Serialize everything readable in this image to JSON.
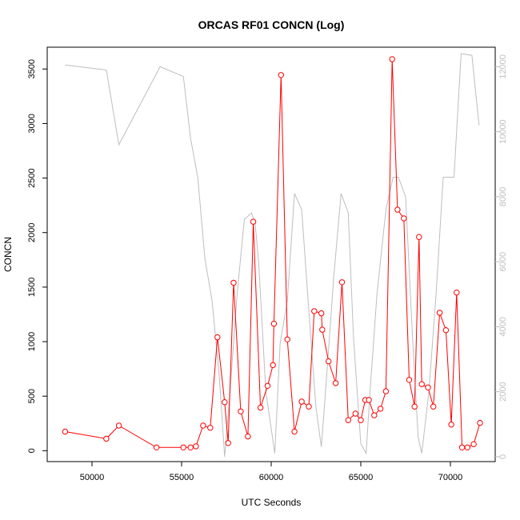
{
  "chart_data": {
    "type": "line",
    "title": "ORCAS RF01 CONCN (Log)",
    "xlabel": "UTC Seconds",
    "ylabel": "CONCN",
    "xlim": [
      47500,
      72500
    ],
    "ylim": [
      -100,
      3700
    ],
    "y2lim": [
      -150,
      12600
    ],
    "x_ticks": [
      "50000",
      "55000",
      "60000",
      "65000",
      "70000"
    ],
    "y_ticks": [
      "0",
      "500",
      "1000",
      "1500",
      "2000",
      "2500",
      "3000",
      "3500"
    ],
    "y2_ticks": [
      "0",
      "2000",
      "4000",
      "6000",
      "8000",
      "10000",
      "12000"
    ],
    "colors": {
      "primary": "#ff0000",
      "secondary": "#bebebe",
      "frame": "#000000"
    },
    "series": [
      {
        "axis": "left",
        "marker": "open-circle",
        "x": [
          48500,
          50800,
          51500,
          53600,
          55100,
          55500,
          55800,
          56200,
          56600,
          57000,
          57400,
          57600,
          57900,
          58300,
          58700,
          59000,
          59400,
          59800,
          60100,
          60150,
          60550,
          60900,
          61300,
          61700,
          62100,
          62400,
          62800,
          62850,
          63200,
          63600,
          63950,
          64300,
          64700,
          65000,
          65250,
          65450,
          65750,
          66100,
          66400,
          66750,
          67050,
          67400,
          67700,
          68000,
          68250,
          68400,
          68750,
          69050,
          69400,
          69750,
          70050,
          70350,
          70650,
          70950,
          71300,
          71650
        ],
        "y": [
          175,
          110,
          230,
          30,
          30,
          30,
          40,
          230,
          210,
          1040,
          445,
          70,
          1540,
          360,
          130,
          2100,
          395,
          595,
          785,
          1165,
          3445,
          1020,
          175,
          450,
          405,
          1280,
          1260,
          1110,
          820,
          620,
          1545,
          280,
          340,
          280,
          465,
          465,
          325,
          385,
          545,
          3590,
          2210,
          2130,
          650,
          405,
          1960,
          610,
          580,
          405,
          1265,
          1105,
          240,
          1450,
          30,
          30,
          60,
          255
        ]
      },
      {
        "axis": "right",
        "x": [
          48500,
          50800,
          51500,
          53800,
          55100,
          55500,
          55900,
          56300,
          56700,
          57100,
          57400,
          57700,
          58100,
          58500,
          58900,
          59100,
          59300,
          59700,
          60200,
          60500,
          60900,
          61300,
          61700,
          62100,
          62500,
          62800,
          63100,
          63500,
          63900,
          64300,
          64600,
          65000,
          65300,
          65500,
          65900,
          66400,
          66800,
          67100,
          67500,
          67900,
          68200,
          68400,
          68800,
          69200,
          69600,
          69900,
          70200,
          70600,
          71200,
          71600
        ],
        "y": [
          12050,
          11900,
          9600,
          12000,
          11700,
          9800,
          8600,
          6100,
          4800,
          2500,
          0,
          2000,
          5000,
          7300,
          7500,
          7200,
          6000,
          2000,
          100,
          3500,
          4800,
          8100,
          7600,
          4500,
          1500,
          300,
          2500,
          5600,
          8100,
          7500,
          3600,
          400,
          100,
          1900,
          5000,
          7600,
          8600,
          8600,
          8000,
          3500,
          600,
          100,
          2000,
          5000,
          8600,
          8600,
          8600,
          12400,
          12350,
          10200
        ]
      }
    ]
  }
}
